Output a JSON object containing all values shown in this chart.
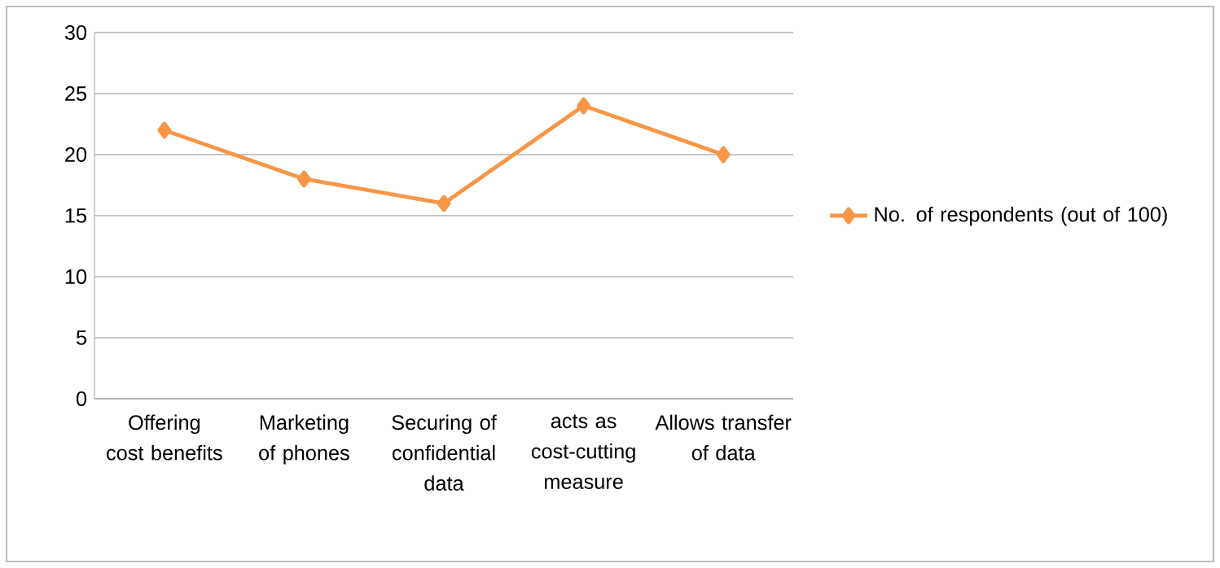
{
  "chart_data": {
    "type": "line",
    "categories": [
      "Offering cost benefits",
      "Marketing of phones",
      "Securing of confidential data",
      "acts as cost-cutting measure",
      "Allows transfer of data"
    ],
    "series": [
      {
        "name": "No. of respondents (out of 100)",
        "color": "#f79646",
        "values": [
          22,
          18,
          16,
          24,
          20
        ]
      }
    ],
    "ylim": [
      0,
      30
    ],
    "yticks": [
      0,
      5,
      10,
      15,
      20,
      25,
      30
    ],
    "grid": "y",
    "legend": "right",
    "marker": "diamond",
    "line_style": "solid"
  }
}
